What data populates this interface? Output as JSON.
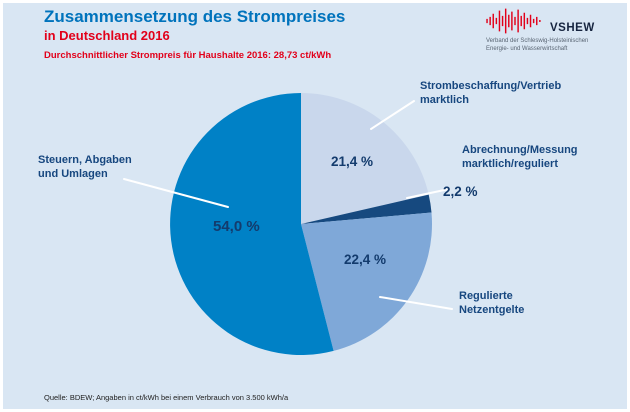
{
  "header": {
    "title": "Zusammensetzung des Strompreises",
    "subtitle": "in Deutschland 2016",
    "note": "Durchschnittlicher Strompreis für Haushalte 2016: 28,73 ct/kWh"
  },
  "logo": {
    "name": "VSHEW",
    "caption": "Verband der Schleswig-Holsteinischen\nEnergie- und Wasserwirtschaft"
  },
  "footer": {
    "source": "Quelle: BDEW; Angaben in ct/kWh bei einem Verbrauch von 3.500 kWh/a"
  },
  "colors": {
    "background": "#d9e6f3",
    "title_blue": "#0073bc",
    "accent_red": "#e2001a",
    "label_navy": "#17477f"
  },
  "chart_data": {
    "type": "pie",
    "title": "Zusammensetzung des Strompreises in Deutschland 2016",
    "subtitle": "Durchschnittlicher Strompreis für Haushalte 2016: 28,73 ct/kWh",
    "unit": "%",
    "start_angle": "top",
    "direction": "clockwise",
    "legend_position": "labels-with-leader-lines",
    "slices": [
      {
        "name": "Strombeschaffung/Vertrieb\nmarktlich",
        "value": 21.4,
        "label": "21,4 %",
        "color": "#c9d7ec"
      },
      {
        "name": "Abrechnung/Messung\nmarktlich/reguliert",
        "value": 2.2,
        "label": "2,2 %",
        "color": "#16497f"
      },
      {
        "name": "Regulierte\nNetzentgelte",
        "value": 22.4,
        "label": "22,4 %",
        "color": "#7fa8d8"
      },
      {
        "name": "Steuern, Abgaben\nund Umlagen",
        "value": 54.0,
        "label": "54,0 %",
        "color": "#0081c6"
      }
    ],
    "source": "Quelle: BDEW; Angaben in ct/kWh bei einem Verbrauch von 3.500 kWh/a"
  }
}
